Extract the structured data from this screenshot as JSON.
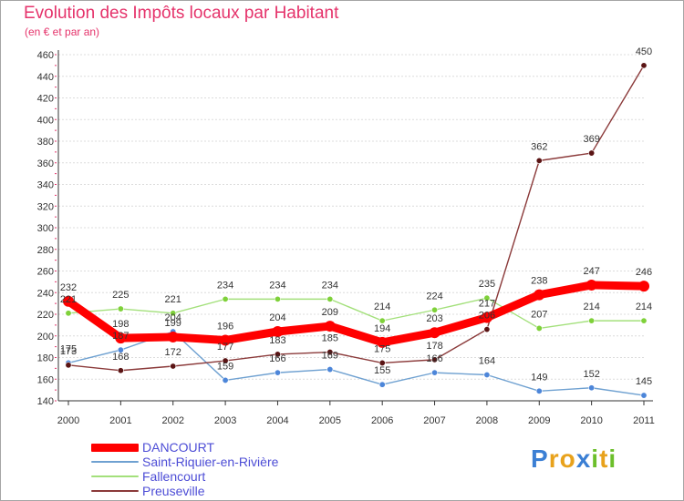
{
  "chart_data": {
    "type": "line",
    "title": "Evolution des Impôts locaux par Habitant",
    "subtitle": "(en € et par an)",
    "xlabel": "",
    "ylabel": "",
    "categories": [
      "2000",
      "2001",
      "2002",
      "2003",
      "2004",
      "2005",
      "2006",
      "2007",
      "2008",
      "2009",
      "2010",
      "2011"
    ],
    "ylim": [
      140,
      460
    ],
    "yticks": [
      140,
      160,
      180,
      200,
      220,
      240,
      260,
      280,
      300,
      320,
      340,
      360,
      380,
      400,
      420,
      440,
      460
    ],
    "series": [
      {
        "name": "DANCOURT",
        "color": "#ff0000",
        "marker": "#ff0000",
        "values": [
          232,
          198,
          199,
          196,
          204,
          209,
          194,
          203,
          217,
          238,
          247,
          246
        ]
      },
      {
        "name": "Saint-Riquier-en-Rivière",
        "color": "#6fa1d1",
        "marker": "#4d86d9",
        "values": [
          175,
          187,
          204,
          159,
          166,
          169,
          155,
          166,
          164,
          149,
          152,
          145
        ]
      },
      {
        "name": "Fallencourt",
        "color": "#a3e07b",
        "marker": "#7fd13a",
        "values": [
          221,
          225,
          221,
          234,
          234,
          234,
          214,
          224,
          235,
          207,
          214,
          214
        ]
      },
      {
        "name": "Preuseville",
        "color": "#8b3a3a",
        "marker": "#5a1414",
        "values": [
          173,
          168,
          172,
          177,
          183,
          185,
          175,
          178,
          206,
          362,
          369,
          450
        ]
      }
    ],
    "data_labels": [
      {
        "series": 0,
        "values": [
          "232",
          "198",
          "199",
          "196",
          "204",
          "209",
          "194",
          "203",
          "217",
          "238",
          "247",
          "246"
        ]
      },
      {
        "series": 1,
        "values": [
          "175",
          "187",
          "204",
          "159",
          "166",
          "169",
          "155",
          "166",
          "164",
          "149",
          "152",
          "145"
        ]
      },
      {
        "series": 2,
        "values": [
          "221",
          "225",
          "221",
          "234",
          "234",
          "234",
          "214",
          "224",
          "235",
          "207",
          "214",
          "214"
        ]
      },
      {
        "series": 3,
        "values": [
          "173",
          "168",
          "172",
          "177",
          "183",
          "185",
          "175",
          "178",
          "206",
          "362",
          "369",
          "450"
        ]
      }
    ]
  },
  "logo": {
    "letters": [
      "P",
      "r",
      "o",
      "x",
      "i",
      "t",
      "i"
    ],
    "colors": [
      "#3b7fd4",
      "#e8a21c",
      "#e8a21c",
      "#3b7fd4",
      "#6cbf2b",
      "#e8a21c",
      "#6cbf2b"
    ]
  }
}
